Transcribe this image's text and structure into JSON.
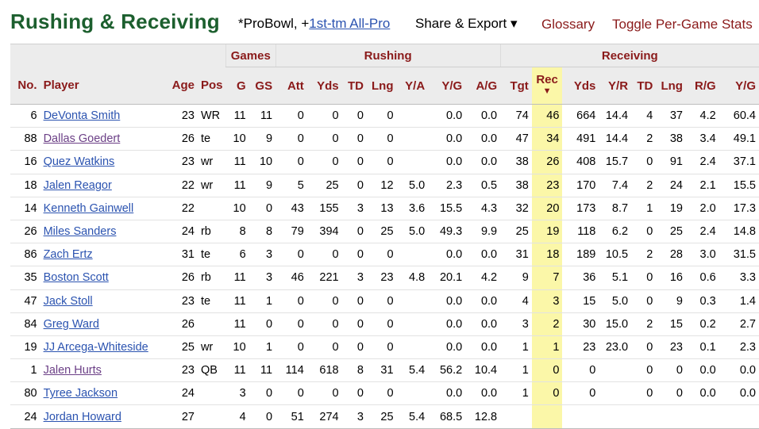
{
  "header": {
    "title": "Rushing & Receiving",
    "probowl_prefix": "*ProBowl, +",
    "allpro_link": "1st-tm All-Pro",
    "share_label": "Share & Export ▾",
    "glossary_label": "Glossary",
    "toggle_label": "Toggle Per-Game Stats"
  },
  "table": {
    "groups": {
      "games": "Games",
      "rushing": "Rushing",
      "receiving": "Receiving"
    },
    "columns": {
      "no": "No.",
      "player": "Player",
      "age": "Age",
      "pos": "Pos",
      "g": "G",
      "gs": "GS",
      "att": "Att",
      "rush_yds": "Yds",
      "rush_td": "TD",
      "rush_lng": "Lng",
      "ya": "Y/A",
      "rush_yg": "Y/G",
      "ag": "A/G",
      "tgt": "Tgt",
      "rec": "Rec",
      "rec_sort_arrow": "▼",
      "rec_yds": "Yds",
      "yr": "Y/R",
      "rec_td": "TD",
      "rec_lng": "Lng",
      "rg": "R/G",
      "rec_yg": "Y/G"
    },
    "rows": [
      {
        "no": "6",
        "player": "DeVonta Smith",
        "visited": false,
        "age": "23",
        "pos": "WR",
        "g": "11",
        "gs": "11",
        "att": "0",
        "ryds": "0",
        "rtd": "0",
        "rlng": "0",
        "ya": "",
        "ryg": "0.0",
        "ag": "0.0",
        "tgt": "74",
        "rec": "46",
        "cyds": "664",
        "yr": "14.4",
        "ctd": "4",
        "clng": "37",
        "rg": "4.2",
        "cyg": "60.4"
      },
      {
        "no": "88",
        "player": "Dallas Goedert",
        "visited": true,
        "age": "26",
        "pos": "te",
        "g": "10",
        "gs": "9",
        "att": "0",
        "ryds": "0",
        "rtd": "0",
        "rlng": "0",
        "ya": "",
        "ryg": "0.0",
        "ag": "0.0",
        "tgt": "47",
        "rec": "34",
        "cyds": "491",
        "yr": "14.4",
        "ctd": "2",
        "clng": "38",
        "rg": "3.4",
        "cyg": "49.1"
      },
      {
        "no": "16",
        "player": "Quez Watkins",
        "visited": false,
        "age": "23",
        "pos": "wr",
        "g": "11",
        "gs": "10",
        "att": "0",
        "ryds": "0",
        "rtd": "0",
        "rlng": "0",
        "ya": "",
        "ryg": "0.0",
        "ag": "0.0",
        "tgt": "38",
        "rec": "26",
        "cyds": "408",
        "yr": "15.7",
        "ctd": "0",
        "clng": "91",
        "rg": "2.4",
        "cyg": "37.1"
      },
      {
        "no": "18",
        "player": "Jalen Reagor",
        "visited": false,
        "age": "22",
        "pos": "wr",
        "g": "11",
        "gs": "9",
        "att": "5",
        "ryds": "25",
        "rtd": "0",
        "rlng": "12",
        "ya": "5.0",
        "ryg": "2.3",
        "ag": "0.5",
        "tgt": "38",
        "rec": "23",
        "cyds": "170",
        "yr": "7.4",
        "ctd": "2",
        "clng": "24",
        "rg": "2.1",
        "cyg": "15.5"
      },
      {
        "no": "14",
        "player": "Kenneth Gainwell",
        "visited": false,
        "age": "22",
        "pos": "",
        "g": "10",
        "gs": "0",
        "att": "43",
        "ryds": "155",
        "rtd": "3",
        "rlng": "13",
        "ya": "3.6",
        "ryg": "15.5",
        "ag": "4.3",
        "tgt": "32",
        "rec": "20",
        "cyds": "173",
        "yr": "8.7",
        "ctd": "1",
        "clng": "19",
        "rg": "2.0",
        "cyg": "17.3"
      },
      {
        "no": "26",
        "player": "Miles Sanders",
        "visited": false,
        "age": "24",
        "pos": "rb",
        "g": "8",
        "gs": "8",
        "att": "79",
        "ryds": "394",
        "rtd": "0",
        "rlng": "25",
        "ya": "5.0",
        "ryg": "49.3",
        "ag": "9.9",
        "tgt": "25",
        "rec": "19",
        "cyds": "118",
        "yr": "6.2",
        "ctd": "0",
        "clng": "25",
        "rg": "2.4",
        "cyg": "14.8"
      },
      {
        "no": "86",
        "player": "Zach Ertz",
        "visited": false,
        "age": "31",
        "pos": "te",
        "g": "6",
        "gs": "3",
        "att": "0",
        "ryds": "0",
        "rtd": "0",
        "rlng": "0",
        "ya": "",
        "ryg": "0.0",
        "ag": "0.0",
        "tgt": "31",
        "rec": "18",
        "cyds": "189",
        "yr": "10.5",
        "ctd": "2",
        "clng": "28",
        "rg": "3.0",
        "cyg": "31.5"
      },
      {
        "no": "35",
        "player": "Boston Scott",
        "visited": false,
        "age": "26",
        "pos": "rb",
        "g": "11",
        "gs": "3",
        "att": "46",
        "ryds": "221",
        "rtd": "3",
        "rlng": "23",
        "ya": "4.8",
        "ryg": "20.1",
        "ag": "4.2",
        "tgt": "9",
        "rec": "7",
        "cyds": "36",
        "yr": "5.1",
        "ctd": "0",
        "clng": "16",
        "rg": "0.6",
        "cyg": "3.3"
      },
      {
        "no": "47",
        "player": "Jack Stoll",
        "visited": false,
        "age": "23",
        "pos": "te",
        "g": "11",
        "gs": "1",
        "att": "0",
        "ryds": "0",
        "rtd": "0",
        "rlng": "0",
        "ya": "",
        "ryg": "0.0",
        "ag": "0.0",
        "tgt": "4",
        "rec": "3",
        "cyds": "15",
        "yr": "5.0",
        "ctd": "0",
        "clng": "9",
        "rg": "0.3",
        "cyg": "1.4"
      },
      {
        "no": "84",
        "player": "Greg Ward",
        "visited": false,
        "age": "26",
        "pos": "",
        "g": "11",
        "gs": "0",
        "att": "0",
        "ryds": "0",
        "rtd": "0",
        "rlng": "0",
        "ya": "",
        "ryg": "0.0",
        "ag": "0.0",
        "tgt": "3",
        "rec": "2",
        "cyds": "30",
        "yr": "15.0",
        "ctd": "2",
        "clng": "15",
        "rg": "0.2",
        "cyg": "2.7"
      },
      {
        "no": "19",
        "player": "JJ Arcega-Whiteside",
        "visited": false,
        "age": "25",
        "pos": "wr",
        "g": "10",
        "gs": "1",
        "att": "0",
        "ryds": "0",
        "rtd": "0",
        "rlng": "0",
        "ya": "",
        "ryg": "0.0",
        "ag": "0.0",
        "tgt": "1",
        "rec": "1",
        "cyds": "23",
        "yr": "23.0",
        "ctd": "0",
        "clng": "23",
        "rg": "0.1",
        "cyg": "2.3"
      },
      {
        "no": "1",
        "player": "Jalen Hurts",
        "visited": true,
        "age": "23",
        "pos": "QB",
        "g": "11",
        "gs": "11",
        "att": "114",
        "ryds": "618",
        "rtd": "8",
        "rlng": "31",
        "ya": "5.4",
        "ryg": "56.2",
        "ag": "10.4",
        "tgt": "1",
        "rec": "0",
        "cyds": "0",
        "yr": "",
        "ctd": "0",
        "clng": "0",
        "rg": "0.0",
        "cyg": "0.0"
      },
      {
        "no": "80",
        "player": "Tyree Jackson",
        "visited": false,
        "age": "24",
        "pos": "",
        "g": "3",
        "gs": "0",
        "att": "0",
        "ryds": "0",
        "rtd": "0",
        "rlng": "0",
        "ya": "",
        "ryg": "0.0",
        "ag": "0.0",
        "tgt": "1",
        "rec": "0",
        "cyds": "0",
        "yr": "",
        "ctd": "0",
        "clng": "0",
        "rg": "0.0",
        "cyg": "0.0"
      },
      {
        "no": "24",
        "player": "Jordan Howard",
        "visited": false,
        "age": "27",
        "pos": "",
        "g": "4",
        "gs": "0",
        "att": "51",
        "ryds": "274",
        "rtd": "3",
        "rlng": "25",
        "ya": "5.4",
        "ryg": "68.5",
        "ag": "12.8",
        "tgt": "",
        "rec": "",
        "cyds": "",
        "yr": "",
        "ctd": "",
        "clng": "",
        "rg": "",
        "cyg": ""
      }
    ]
  }
}
